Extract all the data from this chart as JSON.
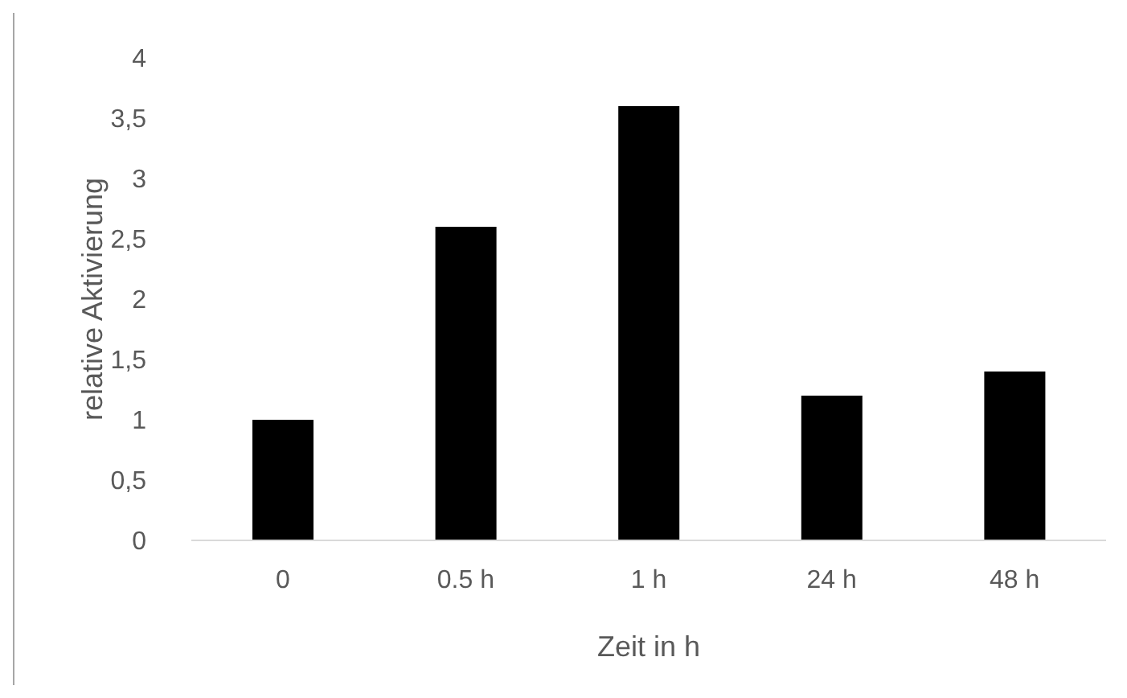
{
  "chart_data": {
    "type": "bar",
    "xlabel": "Zeit in h",
    "ylabel": "relative Aktivierung",
    "categories": [
      "0",
      "0.5 h",
      "1 h",
      "24 h",
      "48 h"
    ],
    "values": [
      1.0,
      2.6,
      3.6,
      1.2,
      1.4
    ],
    "color": "#000000",
    "ylim": [
      0,
      4
    ],
    "yticks": [
      0,
      {
        "value": 0.5,
        "label": "0,5"
      },
      1,
      {
        "value": 1.5,
        "label": "1,5"
      },
      2,
      {
        "value": 2.5,
        "label": "2,5"
      },
      3,
      {
        "value": 3.5,
        "label": "3,5"
      },
      4
    ],
    "grid": false,
    "legend": false
  }
}
